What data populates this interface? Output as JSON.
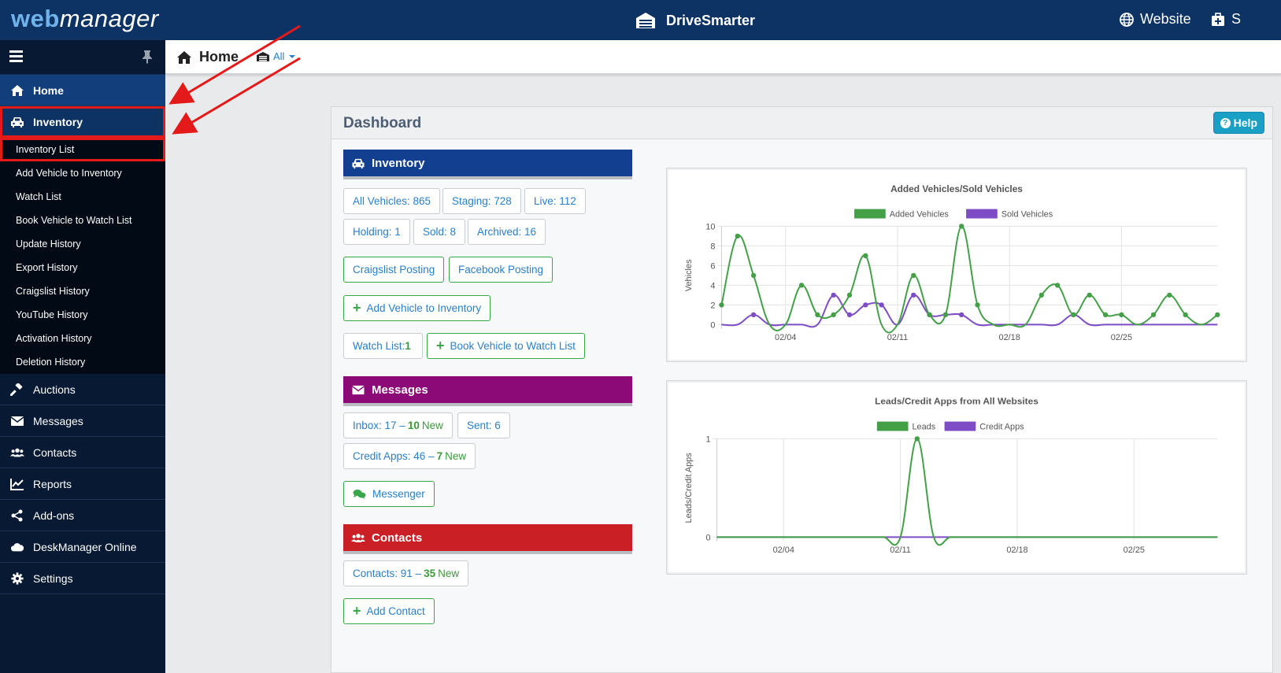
{
  "topbar": {
    "logo_part1": "web",
    "logo_part2": "manager",
    "brand": "DriveSmarter",
    "website_label": "Website",
    "truncated_label": "S"
  },
  "sidebar": {
    "items": [
      {
        "label": "Home",
        "icon": "home-icon"
      },
      {
        "label": "Inventory",
        "icon": "car-icon"
      },
      {
        "label": "Auctions",
        "icon": "gavel-icon"
      },
      {
        "label": "Messages",
        "icon": "envelope-icon"
      },
      {
        "label": "Contacts",
        "icon": "users-icon"
      },
      {
        "label": "Reports",
        "icon": "line-chart-icon"
      },
      {
        "label": "Add-ons",
        "icon": "share-icon"
      },
      {
        "label": "DeskManager Online",
        "icon": "cloud-icon"
      },
      {
        "label": "Settings",
        "icon": "gear-icon"
      }
    ],
    "inventory_sub": [
      "Inventory List",
      "Add Vehicle to Inventory",
      "Watch List",
      "Book Vehicle to Watch List",
      "Update History",
      "Export History",
      "Craigslist History",
      "YouTube History",
      "Activation History",
      "Deletion History"
    ]
  },
  "breadcrumb": {
    "home": "Home",
    "filter": "All"
  },
  "dashboard": {
    "title": "Dashboard",
    "help": "Help",
    "inventory": {
      "title": "Inventory",
      "all_vehicles": "All Vehicles: 865",
      "staging": "Staging: 728",
      "live": "Live: 112",
      "holding": "Holding: 1",
      "sold": "Sold: 8",
      "archived": "Archived: 16",
      "craigslist": "Craigslist Posting",
      "facebook": "Facebook Posting",
      "add_vehicle": "Add Vehicle to Inventory",
      "watch_list_prefix": "Watch List: ",
      "watch_list_count": "1",
      "book_vehicle": "Book Vehicle to Watch List"
    },
    "messages": {
      "title": "Messages",
      "inbox_prefix": "Inbox: 17 –",
      "inbox_new_count": "10",
      "inbox_new_label": "New",
      "sent": "Sent: 6",
      "credit_prefix": "Credit Apps: 46 –",
      "credit_new_count": "7",
      "credit_new_label": "New",
      "messenger": "Messenger"
    },
    "contacts": {
      "title": "Contacts",
      "contacts_prefix": "Contacts: 91 –",
      "contacts_new_count": "35",
      "contacts_new_label": "New",
      "add_contact": "Add Contact"
    }
  },
  "colors": {
    "topbar": "#0d3264",
    "inventory_header": "#123f8f",
    "messages_header": "#8b0a78",
    "contacts_header": "#c91f25",
    "added_series": "#43a047",
    "sold_series": "#7e4cc4"
  },
  "chart_data": [
    {
      "type": "line",
      "title": "Added Vehicles/Sold Vehicles",
      "ylabel": "Vehicles",
      "ylim": [
        0,
        10
      ],
      "yticks": [
        "0",
        "2",
        "4",
        "6",
        "8",
        "10"
      ],
      "xtick_labels": [
        "02/04",
        "02/11",
        "02/18",
        "02/25"
      ],
      "x_start_offset_days_before_first_tick": 4,
      "legend": "top",
      "series": [
        {
          "name": "Added Vehicles",
          "color": "#43a047",
          "values": [
            2,
            9,
            5,
            0,
            0,
            4,
            1,
            1,
            3,
            7,
            0,
            0,
            5,
            1,
            1,
            10,
            2,
            0,
            0,
            0,
            3,
            4,
            1,
            3,
            1,
            1,
            0,
            1,
            3,
            1,
            0,
            1
          ]
        },
        {
          "name": "Sold Vehicles",
          "color": "#7e4cc4",
          "values": [
            0,
            0,
            1,
            0,
            0,
            0,
            0,
            3,
            1,
            2,
            2,
            0,
            3,
            1,
            1,
            1,
            0,
            0,
            0,
            0,
            0,
            0,
            1,
            0,
            0,
            0,
            0,
            0,
            0,
            0,
            0,
            0
          ]
        }
      ]
    },
    {
      "type": "line",
      "title": "Leads/Credit Apps from All Websites",
      "ylabel": "Leads/Credit Apps",
      "ylim": [
        0,
        1
      ],
      "yticks": [
        "0",
        "1"
      ],
      "xtick_labels": [
        "02/04",
        "02/11",
        "02/18",
        "02/25"
      ],
      "legend": "top",
      "series": [
        {
          "name": "Leads",
          "color": "#43a047",
          "values": [
            0,
            0,
            0,
            0,
            0,
            0,
            0,
            0,
            0,
            0,
            0,
            0,
            1,
            0,
            0,
            0,
            0,
            0,
            0,
            0,
            0,
            0,
            0,
            0,
            0,
            0,
            0,
            0,
            0,
            0,
            0
          ]
        },
        {
          "name": "Credit Apps",
          "color": "#7e4cc4",
          "values": [
            0,
            0,
            0,
            0,
            0,
            0,
            0,
            0,
            0,
            0,
            0,
            0,
            0,
            0,
            0,
            0,
            0,
            0,
            0,
            0,
            0,
            0,
            0,
            0,
            0,
            0,
            0,
            0,
            0,
            0,
            0
          ]
        }
      ]
    }
  ]
}
